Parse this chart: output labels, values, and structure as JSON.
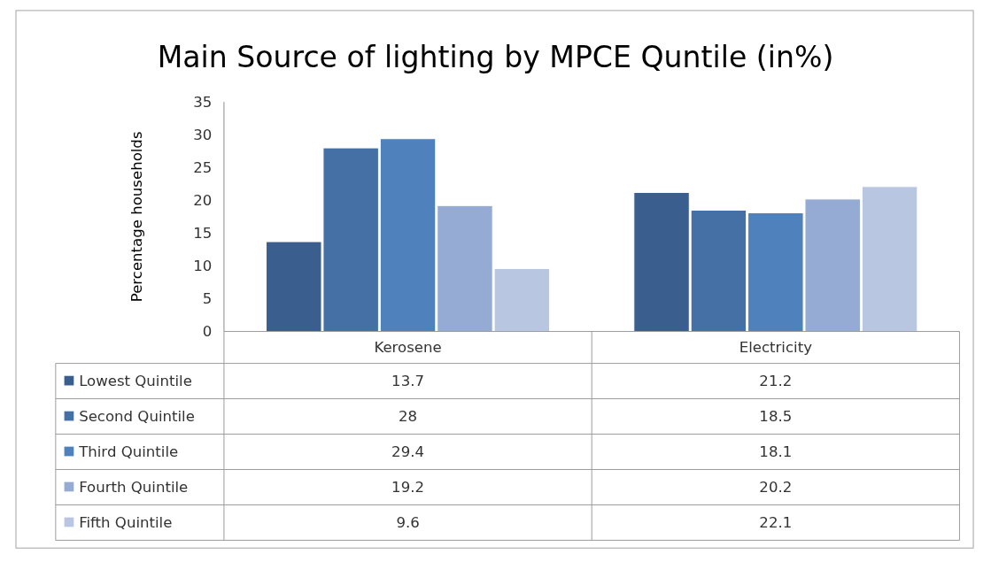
{
  "chart_data": {
    "type": "bar",
    "title": "Main Source of lighting by MPCE Quntile (in%)",
    "ylabel": "Percentage households",
    "categories": [
      "Kerosene",
      "Electricity"
    ],
    "series": [
      {
        "name": "Lowest Quintile",
        "color": "#3a5f8f",
        "values": [
          13.7,
          21.2
        ]
      },
      {
        "name": "Second Quintile",
        "color": "#4470a6",
        "values": [
          28,
          18.5
        ]
      },
      {
        "name": "Third Quintile",
        "color": "#4f81bd",
        "values": [
          29.4,
          18.1
        ]
      },
      {
        "name": "Fourth Quintile",
        "color": "#95abd3",
        "values": [
          19.2,
          20.2
        ]
      },
      {
        "name": "Fifth Quintile",
        "color": "#b9c6e2",
        "values": [
          9.6,
          22.1
        ]
      }
    ],
    "ylim": [
      0,
      35
    ],
    "yticks": [
      0,
      5,
      10,
      15,
      20,
      25,
      30,
      35
    ],
    "data_labels": true,
    "legend": "bottom",
    "grid": false
  }
}
